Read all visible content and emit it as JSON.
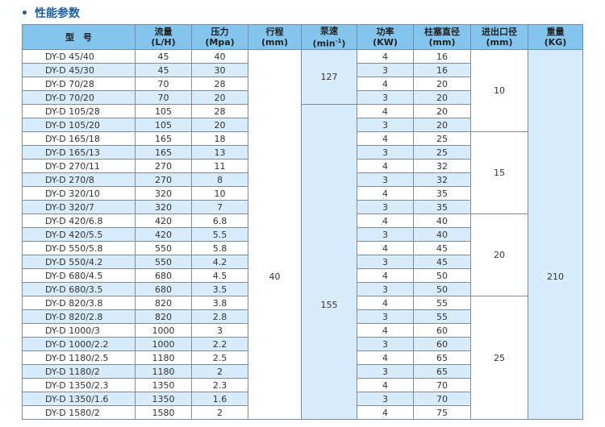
{
  "title": "性能参数",
  "headers": {
    "model": "型　号",
    "flow": [
      "流量",
      "(L/H)"
    ],
    "pressure": [
      "压力",
      "(Mpa)"
    ],
    "stroke": [
      "行程",
      "(mm)"
    ],
    "speed": [
      "泵速",
      "(min",
      "-1",
      ")"
    ],
    "power": [
      "功率",
      "(KW)"
    ],
    "plunger": [
      "柱塞直径",
      "(mm)"
    ],
    "port": [
      "进出口径",
      "(mm)"
    ],
    "weight": [
      "重量",
      "(KG)"
    ]
  },
  "stroke": "40",
  "weight": "210",
  "speed_groups": [
    "127",
    "155"
  ],
  "port_groups": [
    "10",
    "15",
    "20",
    "25"
  ],
  "rows": [
    {
      "model": "DY-D 45/40",
      "flow": "45",
      "pressure": "40",
      "power": "4",
      "plunger": "16"
    },
    {
      "model": "DY-D 45/30",
      "flow": "45",
      "pressure": "30",
      "power": "3",
      "plunger": "16"
    },
    {
      "model": "DY-D 70/28",
      "flow": "70",
      "pressure": "28",
      "power": "4",
      "plunger": "20"
    },
    {
      "model": "DY-D 70/20",
      "flow": "70",
      "pressure": "20",
      "power": "3",
      "plunger": "20"
    },
    {
      "model": "DY-D 105/28",
      "flow": "105",
      "pressure": "28",
      "power": "4",
      "plunger": "20"
    },
    {
      "model": "DY-D 105/20",
      "flow": "105",
      "pressure": "20",
      "power": "3",
      "plunger": "20"
    },
    {
      "model": "DY-D 165/18",
      "flow": "165",
      "pressure": "18",
      "power": "4",
      "plunger": "25"
    },
    {
      "model": "DY-D 165/13",
      "flow": "165",
      "pressure": "13",
      "power": "3",
      "plunger": "25"
    },
    {
      "model": "DY-D 270/11",
      "flow": "270",
      "pressure": "11",
      "power": "4",
      "plunger": "32"
    },
    {
      "model": "DY-D 270/8",
      "flow": "270",
      "pressure": "8",
      "power": "3",
      "plunger": "32"
    },
    {
      "model": "DY-D 320/10",
      "flow": "320",
      "pressure": "10",
      "power": "4",
      "plunger": "35"
    },
    {
      "model": "DY-D 320/7",
      "flow": "320",
      "pressure": "7",
      "power": "3",
      "plunger": "35"
    },
    {
      "model": "DY-D 420/6.8",
      "flow": "420",
      "pressure": "6.8",
      "power": "4",
      "plunger": "40"
    },
    {
      "model": "DY-D 420/5.5",
      "flow": "420",
      "pressure": "5.5",
      "power": "3",
      "plunger": "40"
    },
    {
      "model": "DY-D 550/5.8",
      "flow": "550",
      "pressure": "5.8",
      "power": "4",
      "plunger": "45"
    },
    {
      "model": "DY-D 550/4.2",
      "flow": "550",
      "pressure": "4.2",
      "power": "3",
      "plunger": "45"
    },
    {
      "model": "DY-D 680/4.5",
      "flow": "680",
      "pressure": "4.5",
      "power": "4",
      "plunger": "50"
    },
    {
      "model": "DY-D 680/3.5",
      "flow": "680",
      "pressure": "3.5",
      "power": "3",
      "plunger": "50"
    },
    {
      "model": "DY-D 820/3.8",
      "flow": "820",
      "pressure": "3.8",
      "power": "4",
      "plunger": "55"
    },
    {
      "model": "DY-D 820/2.8",
      "flow": "820",
      "pressure": "2.8",
      "power": "3",
      "plunger": "55"
    },
    {
      "model": "DY-D 1000/3",
      "flow": "1000",
      "pressure": "3",
      "power": "4",
      "plunger": "60"
    },
    {
      "model": "DY-D 1000/2.2",
      "flow": "1000",
      "pressure": "2.2",
      "power": "3",
      "plunger": "60"
    },
    {
      "model": "DY-D 1180/2.5",
      "flow": "1180",
      "pressure": "2.5",
      "power": "4",
      "plunger": "65"
    },
    {
      "model": "DY-D 1180/2",
      "flow": "1180",
      "pressure": "2",
      "power": "3",
      "plunger": "65"
    },
    {
      "model": "DY-D 1350/2.3",
      "flow": "1350",
      "pressure": "2.3",
      "power": "4",
      "plunger": "70"
    },
    {
      "model": "DY-D 1350/1.6",
      "flow": "1350",
      "pressure": "1.6",
      "power": "3",
      "plunger": "70"
    },
    {
      "model": "DY-D 1580/2",
      "flow": "1580",
      "pressure": "2",
      "power": "4",
      "plunger": "75"
    }
  ]
}
